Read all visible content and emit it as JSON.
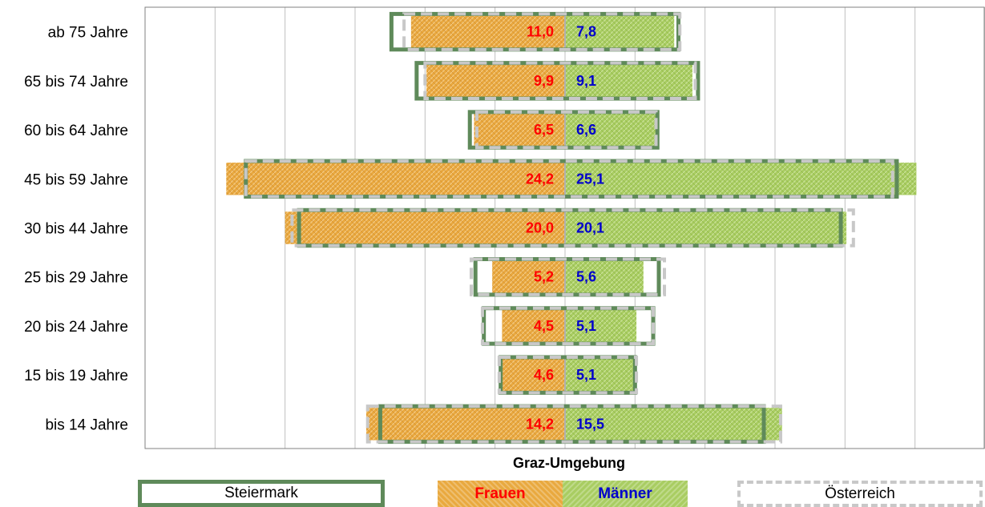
{
  "chart_data": {
    "type": "bar",
    "orientation": "horizontal",
    "subtype": "population-pyramid",
    "title": "Graz-Umgebung",
    "categories": [
      "ab 75 Jahre",
      "65 bis 74 Jahre",
      "60 bis 64 Jahre",
      "45 bis 59 Jahre",
      "30 bis 44 Jahre",
      "25 bis 29 Jahre",
      "20 bis 24 Jahre",
      "15 bis 19 Jahre",
      "bis 14 Jahre"
    ],
    "series": [
      {
        "name": "Frauen",
        "values": [
          11.0,
          9.9,
          6.5,
          24.2,
          20.0,
          5.2,
          4.5,
          4.6,
          14.2
        ],
        "labels": [
          "11,0",
          "9,9",
          "6,5",
          "24,2",
          "20,0",
          "5,2",
          "4,5",
          "4,6",
          "14,2"
        ],
        "color": "#e9a93f",
        "label_color": "#ff0000"
      },
      {
        "name": "Männer",
        "values": [
          7.8,
          9.1,
          6.6,
          25.1,
          20.1,
          5.6,
          5.1,
          5.1,
          15.5
        ],
        "labels": [
          "7,8",
          "9,1",
          "6,6",
          "25,1",
          "20,1",
          "5,6",
          "5,1",
          "5,1",
          "15,5"
        ],
        "color": "#a9cd62",
        "label_color": "#0000cc"
      }
    ],
    "reference_series": [
      {
        "name": "Steiermark",
        "style": "solid-outline",
        "color": "#5f8a5a",
        "frauen": [
          12.4,
          10.6,
          6.8,
          22.8,
          19.0,
          6.4,
          5.8,
          4.6,
          13.2
        ],
        "maenner": [
          8.1,
          9.5,
          6.6,
          23.7,
          19.7,
          6.7,
          6.3,
          5.0,
          14.2
        ]
      },
      {
        "name": "Österreich",
        "style": "dashed-outline",
        "color": "#c8c8c8",
        "frauen": [
          11.5,
          10.0,
          6.3,
          22.8,
          19.5,
          6.7,
          5.9,
          4.7,
          14.1
        ],
        "maenner": [
          8.2,
          9.3,
          6.5,
          23.4,
          20.6,
          7.1,
          6.3,
          5.1,
          15.4
        ]
      }
    ],
    "xlim": [
      -30,
      30
    ],
    "grid": true,
    "legend": {
      "position": "bottom",
      "title": "Graz-Umgebung",
      "items": [
        "Steiermark",
        "Frauen",
        "Männer",
        "Österreich"
      ]
    }
  }
}
